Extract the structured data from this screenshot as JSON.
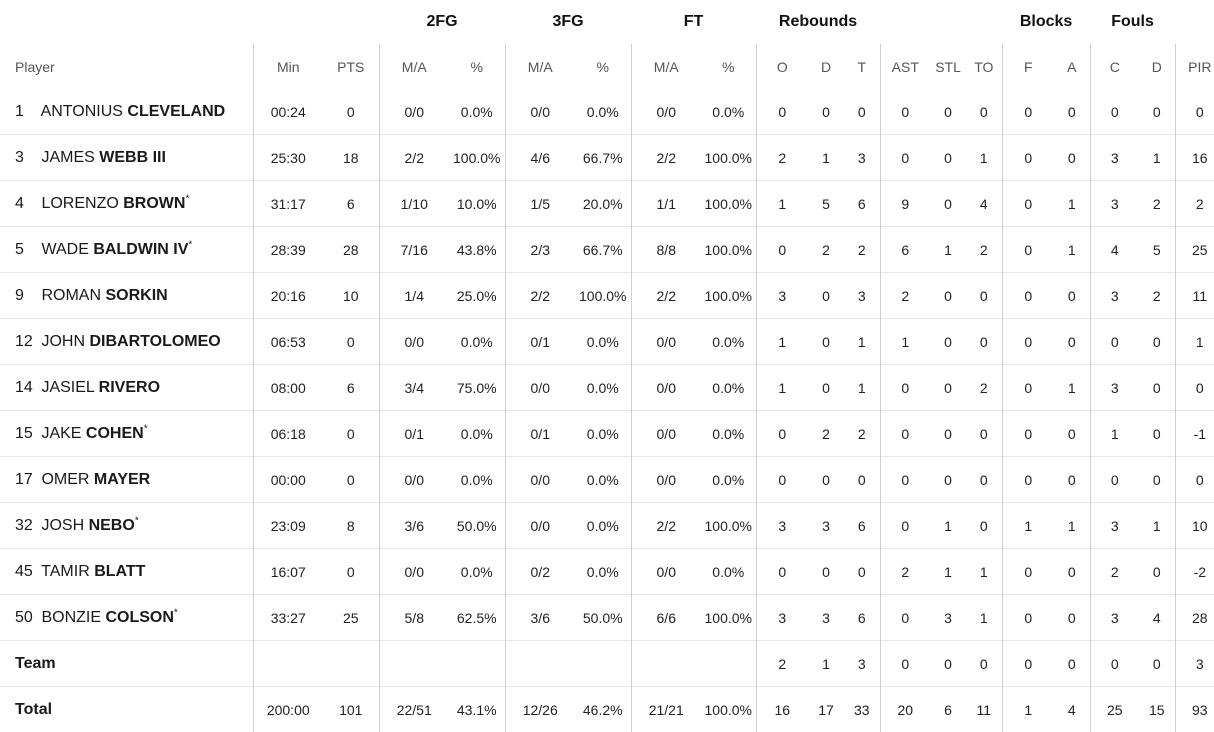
{
  "group_headers": {
    "fg2": "2FG",
    "fg3": "3FG",
    "ft": "FT",
    "rebounds": "Rebounds",
    "blocks": "Blocks",
    "fouls": "Fouls"
  },
  "columns": [
    "Player",
    "Min",
    "PTS",
    "M/A",
    "%",
    "M/A",
    "%",
    "M/A",
    "%",
    "O",
    "D",
    "T",
    "AST",
    "STL",
    "TO",
    "F",
    "A",
    "C",
    "D",
    "PIR"
  ],
  "players": [
    {
      "number": "1",
      "first": "ANTONIUS",
      "last": "CLEVELAND",
      "starter": "",
      "stats": [
        "00:24",
        "0",
        "0/0",
        "0.0%",
        "0/0",
        "0.0%",
        "0/0",
        "0.0%",
        "0",
        "0",
        "0",
        "0",
        "0",
        "0",
        "0",
        "0",
        "0",
        "0",
        "0"
      ]
    },
    {
      "number": "3",
      "first": "JAMES",
      "last": "WEBB III",
      "starter": "",
      "stats": [
        "25:30",
        "18",
        "2/2",
        "100.0%",
        "4/6",
        "66.7%",
        "2/2",
        "100.0%",
        "2",
        "1",
        "3",
        "0",
        "0",
        "1",
        "0",
        "0",
        "3",
        "1",
        "16"
      ]
    },
    {
      "number": "4",
      "first": "LORENZO",
      "last": "BROWN",
      "starter": "*",
      "stats": [
        "31:17",
        "6",
        "1/10",
        "10.0%",
        "1/5",
        "20.0%",
        "1/1",
        "100.0%",
        "1",
        "5",
        "6",
        "9",
        "0",
        "4",
        "0",
        "1",
        "3",
        "2",
        "2"
      ]
    },
    {
      "number": "5",
      "first": "WADE",
      "last": "BALDWIN IV",
      "starter": "*",
      "stats": [
        "28:39",
        "28",
        "7/16",
        "43.8%",
        "2/3",
        "66.7%",
        "8/8",
        "100.0%",
        "0",
        "2",
        "2",
        "6",
        "1",
        "2",
        "0",
        "1",
        "4",
        "5",
        "25"
      ]
    },
    {
      "number": "9",
      "first": "ROMAN",
      "last": "SORKIN",
      "starter": "",
      "stats": [
        "20:16",
        "10",
        "1/4",
        "25.0%",
        "2/2",
        "100.0%",
        "2/2",
        "100.0%",
        "3",
        "0",
        "3",
        "2",
        "0",
        "0",
        "0",
        "0",
        "3",
        "2",
        "11"
      ]
    },
    {
      "number": "12",
      "first": "JOHN",
      "last": "DIBARTOLOMEO",
      "starter": "",
      "stats": [
        "06:53",
        "0",
        "0/0",
        "0.0%",
        "0/1",
        "0.0%",
        "0/0",
        "0.0%",
        "1",
        "0",
        "1",
        "1",
        "0",
        "0",
        "0",
        "0",
        "0",
        "0",
        "1"
      ]
    },
    {
      "number": "14",
      "first": "JASIEL",
      "last": "RIVERO",
      "starter": "",
      "stats": [
        "08:00",
        "6",
        "3/4",
        "75.0%",
        "0/0",
        "0.0%",
        "0/0",
        "0.0%",
        "1",
        "0",
        "1",
        "0",
        "0",
        "2",
        "0",
        "1",
        "3",
        "0",
        "0"
      ]
    },
    {
      "number": "15",
      "first": "JAKE",
      "last": "COHEN",
      "starter": "*",
      "stats": [
        "06:18",
        "0",
        "0/1",
        "0.0%",
        "0/1",
        "0.0%",
        "0/0",
        "0.0%",
        "0",
        "2",
        "2",
        "0",
        "0",
        "0",
        "0",
        "0",
        "1",
        "0",
        "-1"
      ]
    },
    {
      "number": "17",
      "first": "OMER",
      "last": "MAYER",
      "starter": "",
      "stats": [
        "00:00",
        "0",
        "0/0",
        "0.0%",
        "0/0",
        "0.0%",
        "0/0",
        "0.0%",
        "0",
        "0",
        "0",
        "0",
        "0",
        "0",
        "0",
        "0",
        "0",
        "0",
        "0"
      ]
    },
    {
      "number": "32",
      "first": "JOSH",
      "last": "NEBO",
      "starter": "*",
      "stats": [
        "23:09",
        "8",
        "3/6",
        "50.0%",
        "0/0",
        "0.0%",
        "2/2",
        "100.0%",
        "3",
        "3",
        "6",
        "0",
        "1",
        "0",
        "1",
        "1",
        "3",
        "1",
        "10"
      ]
    },
    {
      "number": "45",
      "first": "TAMIR",
      "last": "BLATT",
      "starter": "",
      "stats": [
        "16:07",
        "0",
        "0/0",
        "0.0%",
        "0/2",
        "0.0%",
        "0/0",
        "0.0%",
        "0",
        "0",
        "0",
        "2",
        "1",
        "1",
        "0",
        "0",
        "2",
        "0",
        "-2"
      ]
    },
    {
      "number": "50",
      "first": "BONZIE",
      "last": "COLSON",
      "starter": "*",
      "stats": [
        "33:27",
        "25",
        "5/8",
        "62.5%",
        "3/6",
        "50.0%",
        "6/6",
        "100.0%",
        "3",
        "3",
        "6",
        "0",
        "3",
        "1",
        "0",
        "0",
        "3",
        "4",
        "28"
      ]
    }
  ],
  "team": {
    "label": "Team",
    "stats": [
      "",
      "",
      "",
      "",
      "",
      "",
      "",
      "",
      "2",
      "1",
      "3",
      "0",
      "0",
      "0",
      "0",
      "0",
      "0",
      "0",
      "3"
    ]
  },
  "total": {
    "label": "Total",
    "stats": [
      "200:00",
      "101",
      "22/51",
      "43.1%",
      "12/26",
      "46.2%",
      "21/21",
      "100.0%",
      "16",
      "17",
      "33",
      "20",
      "6",
      "11",
      "1",
      "4",
      "25",
      "15",
      "93"
    ]
  }
}
